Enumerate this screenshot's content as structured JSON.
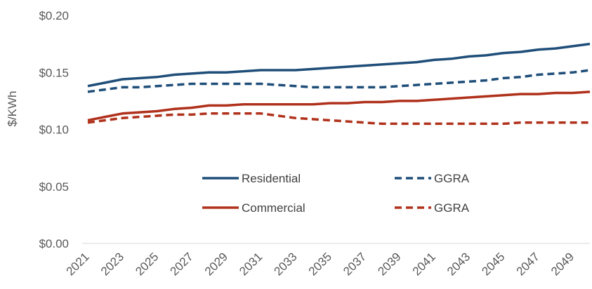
{
  "chart_data": {
    "type": "line",
    "title": "",
    "xlabel": "",
    "ylabel": "$/KWh",
    "ylim": [
      0,
      0.2
    ],
    "yticks": [
      "$0.00",
      "$0.05",
      "$0.10",
      "$0.15",
      "$0.20"
    ],
    "ytick_values": [
      0,
      0.05,
      0.1,
      0.15,
      0.2
    ],
    "xticks": [
      "2021",
      "2023",
      "2025",
      "2027",
      "2029",
      "2031",
      "2033",
      "2035",
      "2037",
      "2039",
      "2041",
      "2043",
      "2045",
      "2047",
      "2049"
    ],
    "x": [
      2021,
      2022,
      2023,
      2024,
      2025,
      2026,
      2027,
      2028,
      2029,
      2030,
      2031,
      2032,
      2033,
      2034,
      2035,
      2036,
      2037,
      2038,
      2039,
      2040,
      2041,
      2042,
      2043,
      2044,
      2045,
      2046,
      2047,
      2048,
      2049,
      2050
    ],
    "grid": false,
    "legend_position": "center",
    "series": [
      {
        "name": "Residential",
        "color": "#1f4e79",
        "style": "solid",
        "values": [
          0.138,
          0.141,
          0.144,
          0.145,
          0.146,
          0.148,
          0.149,
          0.15,
          0.15,
          0.151,
          0.152,
          0.152,
          0.152,
          0.153,
          0.154,
          0.155,
          0.156,
          0.157,
          0.158,
          0.159,
          0.161,
          0.162,
          0.164,
          0.165,
          0.167,
          0.168,
          0.17,
          0.171,
          0.173,
          0.175
        ]
      },
      {
        "name": "GGRA",
        "color": "#1f4e79",
        "style": "dashed",
        "values": [
          0.133,
          0.135,
          0.137,
          0.137,
          0.138,
          0.139,
          0.14,
          0.14,
          0.14,
          0.14,
          0.14,
          0.139,
          0.138,
          0.137,
          0.137,
          0.137,
          0.137,
          0.137,
          0.138,
          0.139,
          0.14,
          0.141,
          0.142,
          0.143,
          0.145,
          0.146,
          0.148,
          0.149,
          0.15,
          0.152
        ]
      },
      {
        "name": "Commercial",
        "color": "#b0311b",
        "style": "solid",
        "values": [
          0.108,
          0.111,
          0.114,
          0.115,
          0.116,
          0.118,
          0.119,
          0.121,
          0.121,
          0.122,
          0.122,
          0.122,
          0.122,
          0.122,
          0.123,
          0.123,
          0.124,
          0.124,
          0.125,
          0.125,
          0.126,
          0.127,
          0.128,
          0.129,
          0.13,
          0.131,
          0.131,
          0.132,
          0.132,
          0.133
        ]
      },
      {
        "name": "GGRA",
        "color": "#b0311b",
        "style": "dashed",
        "values": [
          0.106,
          0.108,
          0.11,
          0.111,
          0.112,
          0.113,
          0.113,
          0.114,
          0.114,
          0.114,
          0.114,
          0.112,
          0.11,
          0.109,
          0.108,
          0.107,
          0.106,
          0.105,
          0.105,
          0.105,
          0.105,
          0.105,
          0.105,
          0.105,
          0.105,
          0.106,
          0.106,
          0.106,
          0.106,
          0.106
        ]
      }
    ]
  }
}
